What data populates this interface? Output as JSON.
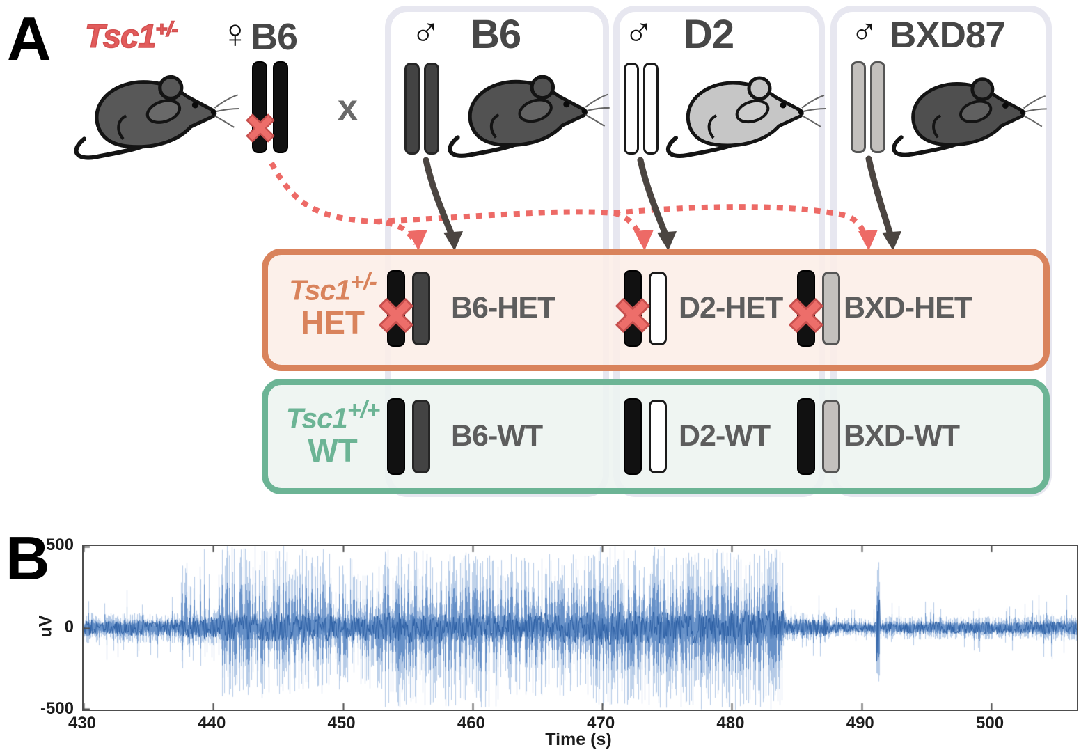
{
  "panel_a": {
    "label": "A",
    "mother": {
      "gene": "Tsc1",
      "allele": "+/-",
      "sex_symbol": "♀",
      "strain": "B6"
    },
    "cross_symbol": "x",
    "fathers": [
      {
        "sex_symbol": "♂",
        "strain": "B6"
      },
      {
        "sex_symbol": "♂",
        "strain": "D2"
      },
      {
        "sex_symbol": "♂",
        "strain": "BXD87"
      }
    ],
    "het_row": {
      "gene": "Tsc1",
      "allele": "+/-",
      "group": "HET",
      "entries": [
        "B6-HET",
        "D2-HET",
        "BXD-HET"
      ]
    },
    "wt_row": {
      "gene": "Tsc1",
      "allele": "+/+",
      "group": "WT",
      "entries": [
        "B6-WT",
        "D2-WT",
        "BXD-WT"
      ]
    },
    "colors": {
      "red_accent": "#ed6a66",
      "het_accent": "#d9835c",
      "wt_accent": "#6cb495",
      "b6_chromosome": "#434343",
      "d2_chromosome": "#ffffff",
      "bxd_chromosome": "#c3c0bd",
      "maternal_chromosome": "#111111"
    }
  },
  "panel_b": {
    "label": "B"
  },
  "chart_data": {
    "type": "line",
    "title": "",
    "xlabel": "Time (s)",
    "ylabel": "uV",
    "xlim": [
      430,
      506.6
    ],
    "ylim": [
      -500,
      500
    ],
    "xticks": [
      430,
      440,
      450,
      460,
      470,
      480,
      490,
      500
    ],
    "yticks": [
      500,
      0,
      -500
    ],
    "grid": false,
    "legend": "none",
    "line_color": "#3a76be",
    "description": "EEG voltage trace: low-amplitude baseline until ~438 s, generalized high-amplitude seizure activity ~438-484 s (spikes to +/-500 uV), abrupt offset at ~484 s, post-ictal low-amplitude signal with isolated spike at ~491.3 s",
    "envelope_segments": [
      {
        "t0": 430.0,
        "t1": 437.5,
        "pos": 90,
        "neg": 95,
        "spike_pos": 240,
        "spike_neg": 210,
        "spike_rate": 0.05
      },
      {
        "t0": 437.5,
        "t1": 440.5,
        "pos": 120,
        "neg": 110,
        "spike_pos": 480,
        "spike_neg": 260,
        "spike_rate": 0.2
      },
      {
        "t0": 440.5,
        "t1": 449.0,
        "pos": 165,
        "neg": 150,
        "spike_pos": 500,
        "spike_neg": 430,
        "spike_rate": 0.52
      },
      {
        "t0": 449.0,
        "t1": 453.0,
        "pos": 150,
        "neg": 140,
        "spike_pos": 430,
        "spike_neg": 380,
        "spike_rate": 0.42
      },
      {
        "t0": 453.0,
        "t1": 462.0,
        "pos": 170,
        "neg": 160,
        "spike_pos": 480,
        "spike_neg": 490,
        "spike_rate": 0.5
      },
      {
        "t0": 462.0,
        "t1": 469.0,
        "pos": 170,
        "neg": 160,
        "spike_pos": 460,
        "spike_neg": 420,
        "spike_rate": 0.45
      },
      {
        "t0": 469.0,
        "t1": 477.0,
        "pos": 190,
        "neg": 190,
        "spike_pos": 500,
        "spike_neg": 490,
        "spike_rate": 0.55
      },
      {
        "t0": 477.0,
        "t1": 484.0,
        "pos": 200,
        "neg": 200,
        "spike_pos": 490,
        "spike_neg": 500,
        "spike_rate": 0.62
      },
      {
        "t0": 484.0,
        "t1": 487.5,
        "pos": 95,
        "neg": 90,
        "spike_pos": 260,
        "spike_neg": 220,
        "spike_rate": 0.08
      },
      {
        "t0": 487.5,
        "t1": 491.1,
        "pos": 60,
        "neg": 60,
        "spike_pos": 130,
        "spike_neg": 130,
        "spike_rate": 0.03
      },
      {
        "t0": 491.1,
        "t1": 491.4,
        "pos": 430,
        "neg": 380,
        "spike_pos": 430,
        "spike_neg": 380,
        "spike_rate": 1.0
      },
      {
        "t0": 491.4,
        "t1": 503.0,
        "pos": 70,
        "neg": 72,
        "spike_pos": 170,
        "spike_neg": 160,
        "spike_rate": 0.05
      },
      {
        "t0": 503.0,
        "t1": 506.6,
        "pos": 82,
        "neg": 80,
        "spike_pos": 235,
        "spike_neg": 205,
        "spike_rate": 0.07
      }
    ]
  }
}
